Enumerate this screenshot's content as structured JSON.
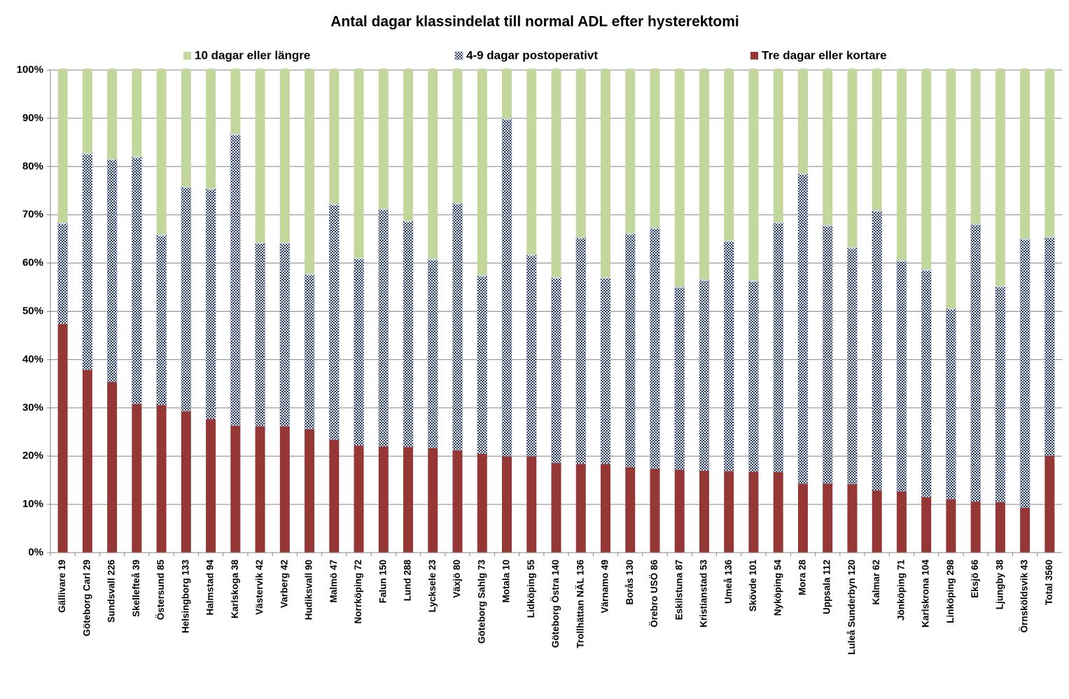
{
  "chart_data": {
    "type": "stacked_bar",
    "title": "Antal dagar klassindelat till normal ADL efter hysterektomi",
    "categories": [
      "Gällivare 19",
      "Göteborg Carl 29",
      "Sundsvall 226",
      "Skellefteå 39",
      "Östersund 85",
      "Helsingborg 133",
      "Halmstad 94",
      "Karlskoga 38",
      "Västervik 42",
      "Varberg 42",
      "Hudiksvall 90",
      "Malmö 47",
      "Norrköping 72",
      "Falun 150",
      "Lund 288",
      "Lycksele 23",
      "Växjö 80",
      "Göteborg Sahlg 73",
      "Motala 10",
      "Lidköping 55",
      "Göteborg Östra 140",
      "Trollhättan NÄL 136",
      "Värnamo 49",
      "Borås 130",
      "Örebro USÖ 86",
      "Eskilstuna 87",
      "Kristianstad 53",
      "Umeå 136",
      "Skövde 101",
      "Nyköping 54",
      "Mora 28",
      "Uppsala 112",
      "Luleå Sunderbyn 120",
      "Kalmar 62",
      "Jönköping 71",
      "Karlskrona 104",
      "Linköping 298",
      "Eksjö 66",
      "Ljungby 38",
      "Örnsköldsvik 43",
      "Total 3560"
    ],
    "series": [
      {
        "name": "Tre dagar eller kortare",
        "color": "#953735",
        "values": [
          47.4,
          37.9,
          35.4,
          30.8,
          30.6,
          29.3,
          27.7,
          26.3,
          26.2,
          26.2,
          25.6,
          23.4,
          22.2,
          22.0,
          21.9,
          21.7,
          21.2,
          20.5,
          20.0,
          20.0,
          18.6,
          18.4,
          18.4,
          17.7,
          17.4,
          17.2,
          17.0,
          16.9,
          16.8,
          16.7,
          14.3,
          14.3,
          14.2,
          12.9,
          12.7,
          11.5,
          11.1,
          10.6,
          10.5,
          9.3,
          20.1
        ]
      },
      {
        "name": "4-9 dagar postoperativt",
        "color": "#1f3864",
        "pattern": "checker",
        "values": [
          21.0,
          44.9,
          46.2,
          51.3,
          35.3,
          46.6,
          47.8,
          60.5,
          38.1,
          38.1,
          32.2,
          48.9,
          38.9,
          49.3,
          46.9,
          39.2,
          51.3,
          37.0,
          70.0,
          41.8,
          38.5,
          47.0,
          38.7,
          48.5,
          50.0,
          38.0,
          39.6,
          47.8,
          39.6,
          51.8,
          64.3,
          53.6,
          49.1,
          58.1,
          47.9,
          47.2,
          39.6,
          57.6,
          44.8,
          55.8,
          45.4
        ]
      },
      {
        "name": "10 dagar eller längre",
        "color": "#c3d69b",
        "values": [
          31.6,
          17.2,
          18.4,
          17.9,
          34.1,
          24.1,
          24.5,
          13.2,
          35.7,
          35.7,
          42.2,
          27.7,
          38.9,
          28.7,
          31.2,
          39.1,
          27.5,
          42.5,
          10.0,
          38.2,
          42.9,
          34.6,
          42.9,
          33.8,
          32.6,
          44.8,
          43.4,
          35.3,
          43.6,
          31.5,
          21.4,
          32.1,
          36.7,
          29.0,
          39.4,
          41.3,
          49.3,
          31.8,
          44.7,
          34.9,
          34.5
        ]
      }
    ],
    "ylim": [
      0,
      100
    ],
    "yticks": [
      {
        "value": 0,
        "label": "0%"
      },
      {
        "value": 10,
        "label": "10%"
      },
      {
        "value": 20,
        "label": "20%"
      },
      {
        "value": 30,
        "label": "30%"
      },
      {
        "value": 40,
        "label": "40%"
      },
      {
        "value": 50,
        "label": "50%"
      },
      {
        "value": 60,
        "label": "60%"
      },
      {
        "value": 70,
        "label": "70%"
      },
      {
        "value": 80,
        "label": "80%"
      },
      {
        "value": 90,
        "label": "90%"
      },
      {
        "value": 100,
        "label": "100%"
      }
    ],
    "grid": true,
    "legend": "top"
  }
}
